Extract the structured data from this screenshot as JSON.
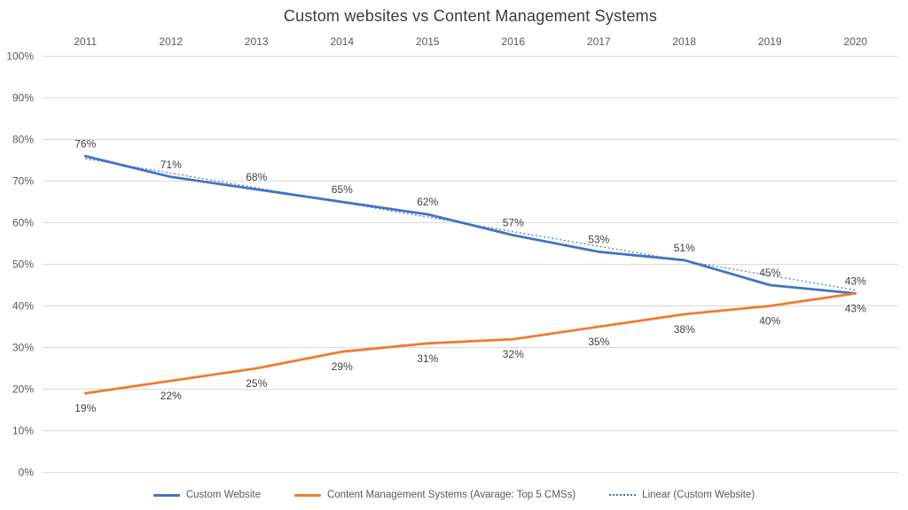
{
  "chart_data": {
    "type": "line",
    "title": "Custom websites vs Content Management Systems",
    "categories": [
      "2011",
      "2012",
      "2013",
      "2014",
      "2015",
      "2016",
      "2017",
      "2018",
      "2019",
      "2020"
    ],
    "x_axis_position": "top",
    "y_axis": {
      "min": 0,
      "max": 100,
      "step": 10,
      "tick_labels": [
        "0%",
        "10%",
        "20%",
        "30%",
        "40%",
        "50%",
        "60%",
        "70%",
        "80%",
        "90%",
        "100%"
      ]
    },
    "grid": "horizontal-only",
    "colors": {
      "series_blue": "#4472C4",
      "series_orange": "#ED7D31",
      "gridline": "#D9D9D9",
      "axis_text": "#595959",
      "data_label_text": "#404040"
    },
    "series": [
      {
        "name": "Custom Website",
        "color": "#4472C4",
        "style": "solid",
        "label_position": "above",
        "values": [
          76,
          71,
          68,
          65,
          62,
          57,
          53,
          51,
          45,
          43
        ],
        "data_labels": [
          "76%",
          "71%",
          "68%",
          "65%",
          "62%",
          "57%",
          "53%",
          "51%",
          "45%",
          "43%"
        ]
      },
      {
        "name": "Content Management Systems (Avarage: Top 5 CMSs)",
        "color": "#ED7D31",
        "style": "solid",
        "label_position": "below",
        "values": [
          19,
          22,
          25,
          29,
          31,
          32,
          35,
          38,
          40,
          43
        ],
        "data_labels": [
          "19%",
          "22%",
          "25%",
          "29%",
          "31%",
          "32%",
          "35%",
          "38%",
          "40%",
          "43%"
        ]
      },
      {
        "name": "Linear (Custom Website)",
        "color": "#4472C4",
        "style": "dotted",
        "is_trendline": true,
        "trend_endpoints": [
          75.4,
          43.8
        ]
      }
    ],
    "legend": {
      "position": "bottom"
    }
  }
}
